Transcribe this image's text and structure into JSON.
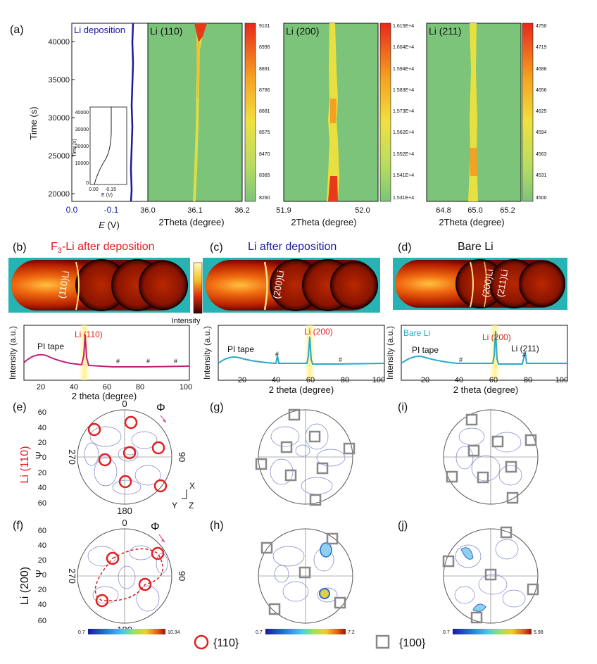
{
  "panel_a": {
    "label": "(a)",
    "left": {
      "title": "Li deposition",
      "ylabel": "Time (s)",
      "yticks": [
        "20000",
        "25000",
        "30000",
        "35000",
        "40000"
      ],
      "xticks": [
        "0.0",
        "-0.1"
      ],
      "xlabel_italic": "E",
      "xlabel_unit": " (V)",
      "inset": {
        "yticks": [
          "0",
          "10000",
          "20000",
          "30000",
          "40000"
        ],
        "xticks": [
          "0.00",
          "-0.15"
        ],
        "ylabel": "Time (s)",
        "xlabel": "E (V)"
      }
    },
    "maps": [
      {
        "title": "Li (110)",
        "xticks": [
          "36.0",
          "36.1",
          "36.2"
        ],
        "xlabel": "2Theta (degree)",
        "cbar": [
          "9101",
          "8996",
          "8891",
          "8786",
          "8681",
          "8575",
          "8470",
          "8365",
          "8260"
        ]
      },
      {
        "title": "Li (200)",
        "xticks": [
          "51.9",
          "52.0"
        ],
        "xlabel": "2Theta (degree)",
        "cbar": [
          "1.615E+4",
          "1.604E+4",
          "1.594E+4",
          "1.583E+4",
          "1.573E+4",
          "1.562E+4",
          "1.552E+4",
          "1.541E+4",
          "1.531E+4"
        ]
      },
      {
        "title": "Li (211)",
        "xticks": [
          "64.8",
          "65.0",
          "65.2"
        ],
        "xlabel": "2Theta (degree)",
        "cbar": [
          "4750",
          "4719",
          "4688",
          "4656",
          "4625",
          "4594",
          "4563",
          "4531",
          "4500"
        ]
      }
    ]
  },
  "panels_bcd": [
    {
      "label": "(b)",
      "title_pre": "F",
      "title_sub": "3",
      "title_post": "-Li after deposition",
      "title_color": "#e02020",
      "ring_labels": [
        "(110)Li"
      ],
      "pattern": {
        "legend": "",
        "peak_label": "Li (110)",
        "pi": "PI tape",
        "extra": "",
        "hash": [
          "#",
          "#",
          "#"
        ]
      }
    },
    {
      "label": "(c)",
      "title_pre": "Li after deposition",
      "title_sub": "",
      "title_post": "",
      "title_color": "#1a1aa0",
      "ring_labels": [
        "(200)Li"
      ],
      "pattern": {
        "legend": "",
        "peak_label": "Li (200)",
        "pi": "PI tape",
        "extra": "",
        "hash": [
          "#",
          "#"
        ]
      }
    },
    {
      "label": "(d)",
      "title_pre": "Bare Li",
      "title_sub": "",
      "title_post": "",
      "title_color": "#111111",
      "ring_labels": [
        "(200)Li",
        "(211)Li"
      ],
      "pattern": {
        "legend": "Bare Li",
        "peak_label": "Li (200)",
        "pi": "PI tape",
        "extra": "Li (211)",
        "hash": [
          "#",
          "#"
        ]
      }
    }
  ],
  "xrd_common": {
    "ylabel": "Intensity (a.u.)",
    "xlabel": "2 theta (degree)",
    "xticks": [
      "20",
      "40",
      "60",
      "80",
      "100"
    ],
    "intensity_label": "Intensity"
  },
  "pole_figs": {
    "labels": [
      "(e)",
      "(f)",
      "(g)",
      "(h)",
      "(i)",
      "(j)"
    ],
    "row_labels": [
      "Li (110)",
      "Li (200)"
    ],
    "psi_label": "Ψ",
    "phi_label": "Φ",
    "angles": {
      "top": "0",
      "bottom": "180",
      "left": "270",
      "right": "90"
    },
    "psi_ticks": [
      "60",
      "40",
      "20",
      "0",
      "20",
      "40",
      "60"
    ],
    "axes_labels": {
      "x": "X",
      "y": "Y",
      "z": "Z"
    },
    "scales": [
      {
        "min": "0.7",
        "max": "10.34"
      },
      {
        "min": "0.7",
        "max": "7.2"
      },
      {
        "min": "0.7",
        "max": "5.98"
      }
    ]
  },
  "legend": {
    "circle": "{110}",
    "square": "{100}"
  },
  "colors": {
    "map_bg": "#7cc47a",
    "plate_bg": "#26b3b3",
    "circle": "#e02020",
    "square": "#888888",
    "trace_b": "#c0207a",
    "trace_cd": "#29a9c8",
    "blue": "#1a1aa0"
  }
}
